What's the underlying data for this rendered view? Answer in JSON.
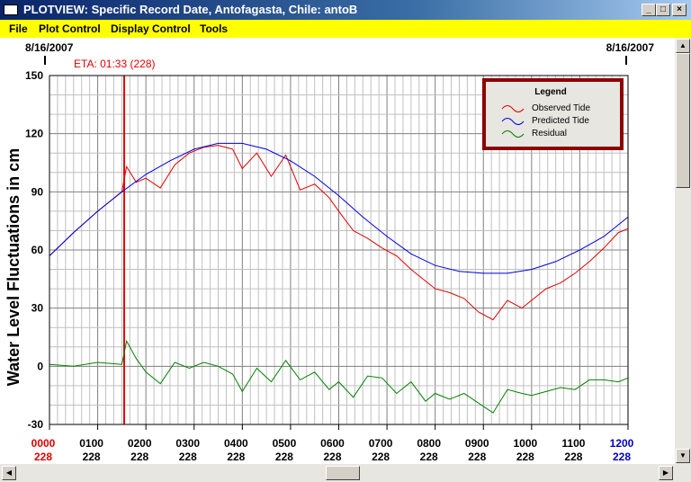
{
  "window": {
    "title": "PLOTVIEW: Specific Record Date, Antofagasta, Chile: antoB",
    "minimize_glyph": "_",
    "maximize_glyph": "□",
    "close_glyph": "×"
  },
  "menu": {
    "items": [
      "File",
      "Plot Control",
      "Display Control",
      "Tools"
    ]
  },
  "colors": {
    "observed": "#e00000",
    "predicted": "#0000e0",
    "residual": "#008000",
    "eta_line": "#e00000",
    "menu_bg": "#ffff00"
  },
  "chart_data": {
    "type": "line",
    "ylabel": "Water Level Fluctuations in cm",
    "ylim": [
      -30,
      150
    ],
    "yticks": [
      -30,
      0,
      30,
      60,
      90,
      120,
      150
    ],
    "xlim_hours": [
      0,
      12
    ],
    "date_left": "8/16/2007",
    "date_right": "8/16/2007",
    "eta_label": "ETA: 01:33 (228)",
    "eta_hour": 1.55,
    "grid": true,
    "x_ticks": [
      {
        "time": "0000",
        "day": "228",
        "color": "red"
      },
      {
        "time": "0100",
        "day": "228",
        "color": "black"
      },
      {
        "time": "0200",
        "day": "228",
        "color": "black"
      },
      {
        "time": "0300",
        "day": "228",
        "color": "black"
      },
      {
        "time": "0400",
        "day": "228",
        "color": "black"
      },
      {
        "time": "0500",
        "day": "228",
        "color": "black"
      },
      {
        "time": "0600",
        "day": "228",
        "color": "black"
      },
      {
        "time": "0700",
        "day": "228",
        "color": "black"
      },
      {
        "time": "0800",
        "day": "228",
        "color": "black"
      },
      {
        "time": "0900",
        "day": "228",
        "color": "black"
      },
      {
        "time": "1000",
        "day": "228",
        "color": "black"
      },
      {
        "time": "1100",
        "day": "228",
        "color": "black"
      },
      {
        "time": "1200",
        "day": "228",
        "color": "blue"
      }
    ],
    "legend": {
      "title": "Legend",
      "placement": "top-right",
      "entries": [
        "Observed Tide",
        "Predicted Tide",
        "Residual"
      ]
    },
    "series": [
      {
        "name": "Observed Tide",
        "x": [
          0,
          0.5,
          1,
          1.5,
          1.6,
          1.8,
          2,
          2.3,
          2.6,
          2.9,
          3.2,
          3.5,
          3.8,
          4,
          4.3,
          4.6,
          4.9,
          5.2,
          5.5,
          5.8,
          6,
          6.3,
          6.6,
          6.9,
          7.2,
          7.5,
          7.8,
          8,
          8.3,
          8.6,
          8.9,
          9.2,
          9.5,
          9.8,
          10,
          10.3,
          10.6,
          10.9,
          11.2,
          11.5,
          11.8,
          12
        ],
        "y": [
          57,
          69,
          80,
          90,
          103,
          95,
          97,
          92,
          104,
          110,
          113,
          114,
          112,
          102,
          110,
          98,
          109,
          91,
          94,
          87,
          80,
          70,
          66,
          61,
          57,
          50,
          44,
          40,
          38,
          35,
          28,
          24,
          34,
          30,
          34,
          40,
          43,
          48,
          54,
          61,
          69,
          71
        ]
      },
      {
        "name": "Predicted Tide",
        "x": [
          0,
          0.5,
          1,
          1.5,
          2,
          2.5,
          3,
          3.5,
          4,
          4.5,
          5,
          5.5,
          6,
          6.5,
          7,
          7.5,
          8,
          8.5,
          9,
          9.5,
          10,
          10.5,
          11,
          11.5,
          12
        ],
        "y": [
          57,
          69,
          80,
          90,
          99,
          106,
          112,
          115,
          115,
          112,
          106,
          98,
          88,
          77,
          67,
          58,
          52,
          49,
          48,
          48,
          50,
          54,
          60,
          67,
          77
        ]
      },
      {
        "name": "Residual",
        "x": [
          0,
          0.5,
          1,
          1.5,
          1.6,
          1.8,
          2,
          2.3,
          2.6,
          2.9,
          3.2,
          3.5,
          3.8,
          4,
          4.3,
          4.6,
          4.9,
          5.2,
          5.5,
          5.8,
          6,
          6.3,
          6.6,
          6.9,
          7.2,
          7.5,
          7.8,
          8,
          8.3,
          8.6,
          8.9,
          9.2,
          9.5,
          9.8,
          10,
          10.3,
          10.6,
          10.9,
          11.2,
          11.5,
          11.8,
          12
        ],
        "y": [
          1,
          0,
          2,
          1,
          13,
          4,
          -3,
          -9,
          2,
          -1,
          2,
          0,
          -4,
          -13,
          -1,
          -8,
          3,
          -7,
          -3,
          -12,
          -8,
          -16,
          -5,
          -6,
          -14,
          -8,
          -18,
          -14,
          -17,
          -14,
          -19,
          -24,
          -12,
          -14,
          -15,
          -13,
          -11,
          -12,
          -7,
          -7,
          -8,
          -6
        ]
      }
    ]
  }
}
